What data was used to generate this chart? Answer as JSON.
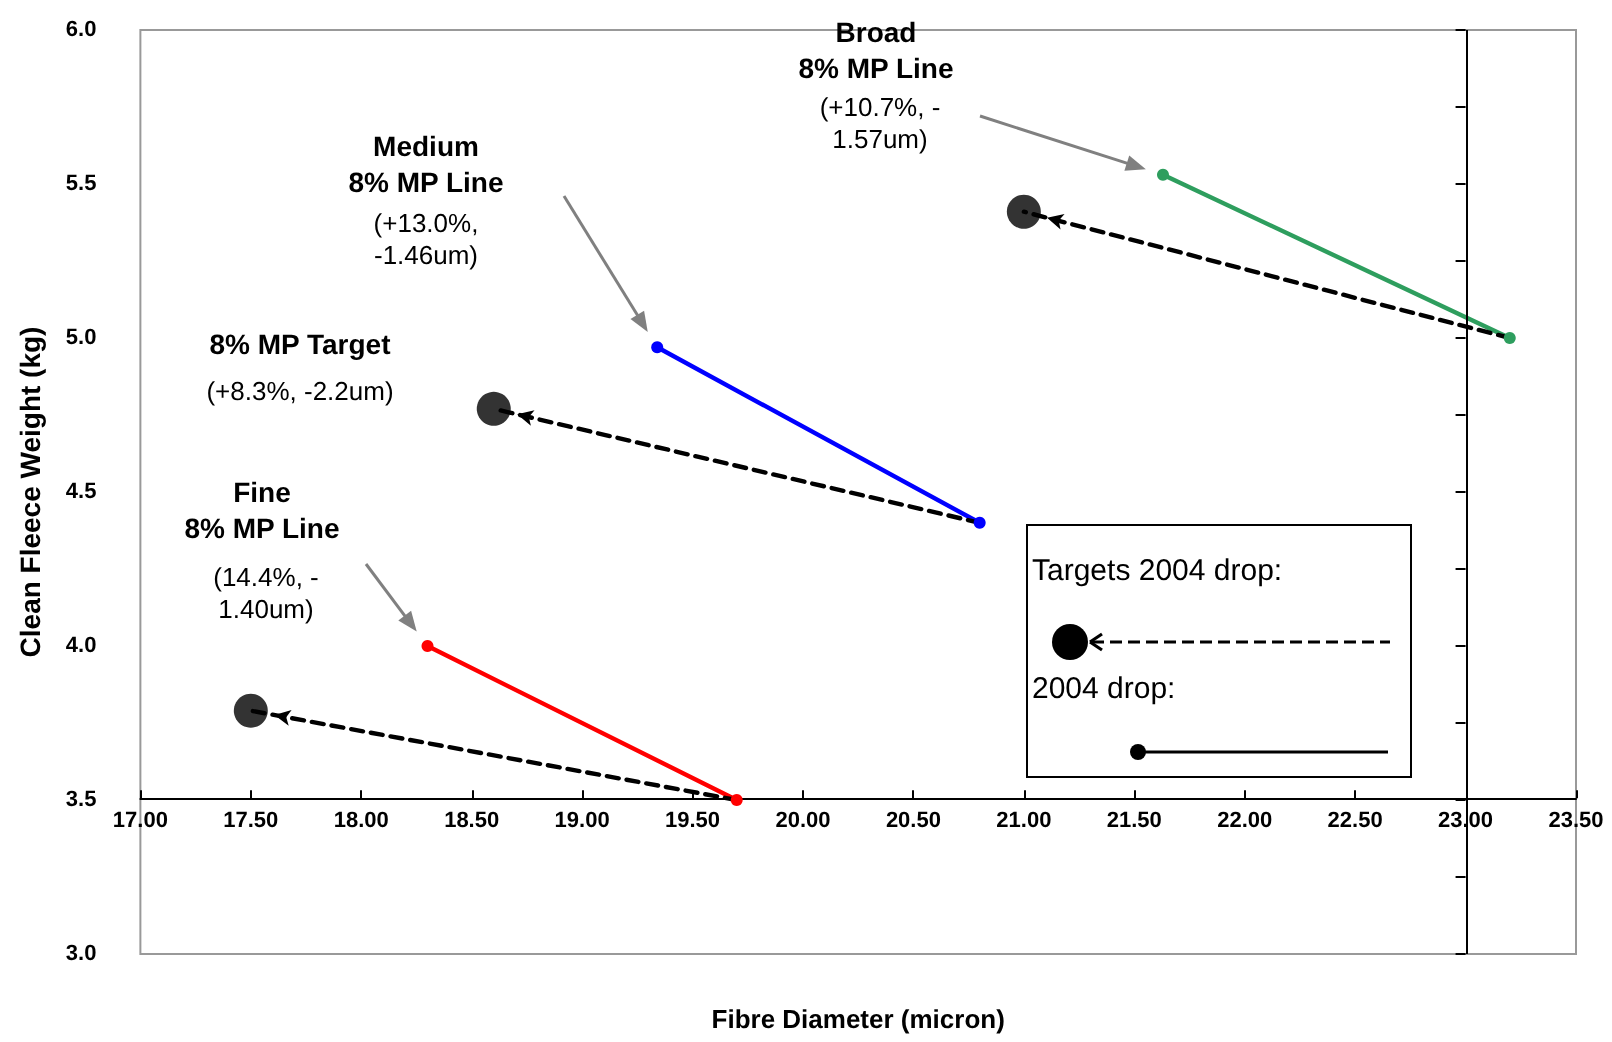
{
  "chart_data": {
    "type": "line",
    "xlabel": "Fibre Diameter (micron)",
    "ylabel": "Clean Fleece Weight (kg)",
    "xlim": [
      17,
      23.5
    ],
    "xticks": [
      {
        "value": 17,
        "label": "17.00"
      },
      {
        "value": 17.5,
        "label": "17.50"
      },
      {
        "value": 18,
        "label": "18.00"
      },
      {
        "value": 18.5,
        "label": "18.50"
      },
      {
        "value": 19,
        "label": "19.00"
      },
      {
        "value": 19.5,
        "label": "19.50"
      },
      {
        "value": 20,
        "label": "20.00"
      },
      {
        "value": 20.5,
        "label": "20.50"
      },
      {
        "value": 21,
        "label": "21.00"
      },
      {
        "value": 21.5,
        "label": "21.50"
      },
      {
        "value": 22,
        "label": "22.00"
      },
      {
        "value": 22.5,
        "label": "22.50"
      },
      {
        "value": 23,
        "label": "23.00"
      },
      {
        "value": 23.5,
        "label": "23.50"
      }
    ],
    "ylim": [
      3,
      6
    ],
    "yticks": [
      {
        "value": 3,
        "label": "3.0"
      },
      {
        "value": 3.5,
        "label": "3.5"
      },
      {
        "value": 4,
        "label": "4.0"
      },
      {
        "value": 4.5,
        "label": "4.5"
      },
      {
        "value": 5,
        "label": "5.0"
      },
      {
        "value": 5.5,
        "label": "5.5"
      },
      {
        "value": 6,
        "label": "6.0"
      }
    ],
    "grid": false,
    "ref_lines": [
      {
        "axis": "x",
        "value": 23,
        "color": "#000000",
        "line_style": "solid"
      }
    ],
    "series": [
      {
        "color": "#ff0000",
        "x": [
          19.7,
          18.3
        ],
        "values": [
          3.5,
          4.0
        ],
        "marker": "circle",
        "line_style": "solid"
      },
      {
        "color": "#0000ff",
        "x": [
          20.8,
          19.34
        ],
        "values": [
          4.4,
          4.97
        ],
        "marker": "circle",
        "line_style": "solid"
      },
      {
        "color": "#2e9e5e",
        "x": [
          23.2,
          21.63
        ],
        "values": [
          5.0,
          5.53
        ],
        "marker": "circle",
        "line_style": "solid"
      },
      {
        "color": "#000000",
        "x": [
          19.7,
          17.5
        ],
        "values": [
          3.5,
          3.79
        ],
        "marker": "none",
        "line_style": "dashed"
      },
      {
        "color": "#000000",
        "x": [
          20.8,
          18.6
        ],
        "values": [
          4.4,
          4.77
        ],
        "marker": "none",
        "line_style": "dashed"
      },
      {
        "color": "#000000",
        "x": [
          23.2,
          21.0
        ],
        "values": [
          5.0,
          5.41
        ],
        "marker": "none",
        "line_style": "dashed"
      },
      {
        "type": "scatter",
        "color": "#000000",
        "x": [
          17.5,
          18.6,
          21.0
        ],
        "values": [
          3.79,
          4.77,
          5.41
        ],
        "marker": "circle"
      }
    ],
    "annotations": [
      "Broad\n8% MP Line",
      "(+10.7%, -\n1.57um)",
      "Medium\n8% MP Line",
      "(+13.0%,\n-1.46um)",
      "8% MP Target",
      "(+8.3%, -2.2um)",
      "Fine\n8% MP Line",
      "(14.4%, -\n1.40um)",
      "Targets 2004 drop:",
      "2004 drop:"
    ]
  }
}
